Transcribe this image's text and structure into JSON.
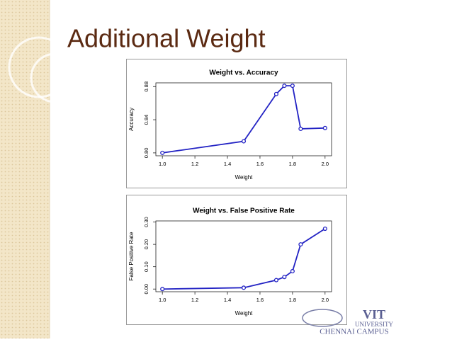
{
  "title": "Additional Weight",
  "logo": {
    "name": "VIT",
    "line1": "UNIVERSITY",
    "line2": "CHENNAI CAMPUS"
  },
  "chart_data": [
    {
      "type": "line",
      "title": "Weight vs. Accuracy",
      "x_label": "Weight",
      "y_label": "Accuracy",
      "series": [
        {
          "name": "Accuracy",
          "color": "#2323c4",
          "x": [
            1.0,
            1.5,
            1.7,
            1.75,
            1.8,
            1.85,
            2.0
          ],
          "values": [
            0.8,
            0.814,
            0.871,
            0.881,
            0.881,
            0.829,
            0.83
          ]
        }
      ],
      "xlim": [
        0.96,
        2.04
      ],
      "xticks": [
        {
          "value": 1.0,
          "label": "1.0"
        },
        1.2,
        1.4,
        1.6,
        1.8,
        {
          "value": 2.0,
          "label": "2.0"
        }
      ],
      "ylim": [
        0.7965,
        0.8845
      ],
      "yticks": [
        {
          "value": 0.8,
          "label": "0.80"
        },
        0.84,
        0.88
      ]
    },
    {
      "type": "line",
      "title": "Weight vs. False Positive Rate",
      "x_label": "Weight",
      "y_label": "False Positive Rate",
      "series": [
        {
          "name": "False Positive Rate",
          "color": "#2323c4",
          "x": [
            1.0,
            1.5,
            1.7,
            1.75,
            1.8,
            1.85,
            2.0
          ],
          "values": [
            0.0,
            0.006,
            0.04,
            0.054,
            0.08,
            0.2,
            0.27
          ]
        }
      ],
      "xlim": [
        0.96,
        2.04
      ],
      "xticks": [
        {
          "value": 1.0,
          "label": "1.0"
        },
        1.2,
        1.4,
        1.6,
        1.8,
        {
          "value": 2.0,
          "label": "2.0"
        }
      ],
      "ylim": [
        -0.012,
        0.305
      ],
      "yticks": [
        {
          "value": 0.0,
          "label": "0.00"
        },
        {
          "value": 0.1,
          "label": "0.10"
        },
        {
          "value": 0.2,
          "label": "0.20"
        },
        {
          "value": 0.3,
          "label": "0.30"
        }
      ]
    }
  ]
}
